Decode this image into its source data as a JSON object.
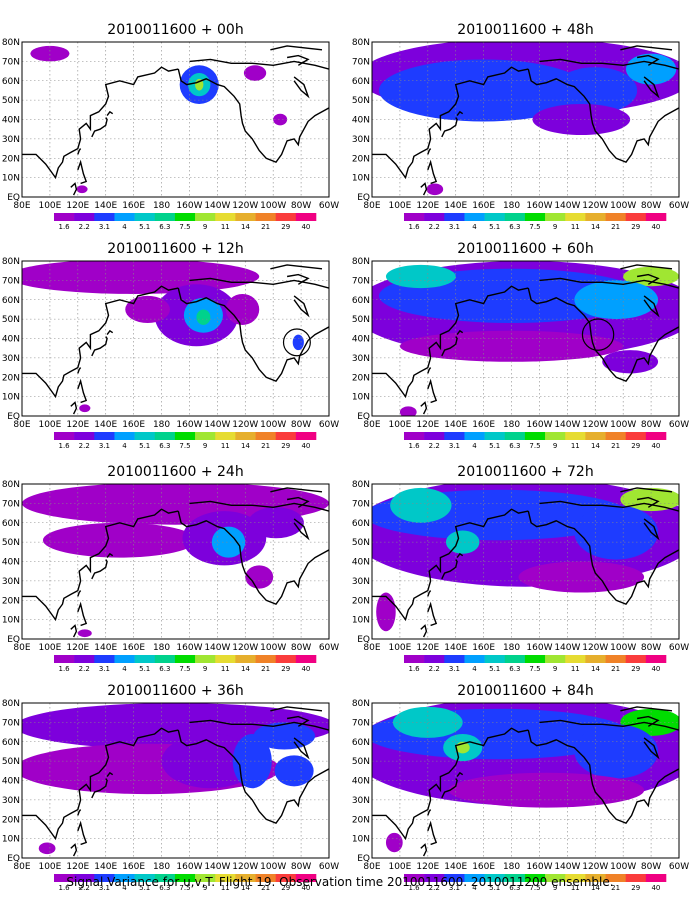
{
  "caption": "Signal Variance for u,v,T. Flight 19. Observation time 2010011600. 2010011200 ensemble.",
  "colorbar": {
    "labels": [
      "1.6",
      "2.2",
      "3.1",
      "4",
      "5.1",
      "6.3",
      "7.5",
      "9",
      "11",
      "14",
      "21",
      "29",
      "40"
    ],
    "colors": [
      "#a000c8",
      "#7d00dc",
      "#1e3cff",
      "#00a0ff",
      "#00c8c8",
      "#00d28c",
      "#00dc00",
      "#a0e632",
      "#e6dc32",
      "#e6af2d",
      "#f08228",
      "#fa3c3c",
      "#f00082"
    ]
  },
  "x_tick_labels": [
    "80E",
    "100E",
    "120E",
    "140E",
    "160E",
    "180",
    "160W",
    "140W",
    "120W",
    "100W",
    "80W",
    "60W"
  ],
  "y_tick_labels": [
    "EQ",
    "10N",
    "20N",
    "30N",
    "40N",
    "50N",
    "60N",
    "70N",
    "80N"
  ],
  "chart_data": [
    {
      "type": "heatmap",
      "title": "2010011600 + 00h",
      "lead_hours": 0,
      "xlim": [
        "80E",
        "60W"
      ],
      "ylim": [
        "EQ",
        "80N"
      ],
      "features": [
        {
          "lon": 207,
          "lat": 58,
          "rx": 14,
          "ry": 10,
          "level": 2
        },
        {
          "lon": 207,
          "lat": 58,
          "rx": 8,
          "ry": 6,
          "level": 4
        },
        {
          "lon": 207,
          "lat": 58,
          "rx": 3,
          "ry": 3,
          "level": 7
        },
        {
          "lon": 100,
          "lat": 74,
          "rx": 14,
          "ry": 4,
          "level": 0
        },
        {
          "lon": 265,
          "lat": 40,
          "rx": 5,
          "ry": 3,
          "level": 0
        },
        {
          "lon": 247,
          "lat": 64,
          "rx": 8,
          "ry": 4,
          "level": 0
        },
        {
          "lon": 123,
          "lat": 4,
          "rx": 4,
          "ry": 2,
          "level": 0
        }
      ],
      "circle": null
    },
    {
      "type": "heatmap",
      "title": "2010011600 + 12h",
      "lead_hours": 12,
      "xlim": [
        "80E",
        "60W"
      ],
      "ylim": [
        "EQ",
        "80N"
      ],
      "features": [
        {
          "lon": 160,
          "lat": 72,
          "rx": 90,
          "ry": 9,
          "level": 0
        },
        {
          "lon": 205,
          "lat": 52,
          "rx": 30,
          "ry": 16,
          "level": 1
        },
        {
          "lon": 210,
          "lat": 52,
          "rx": 14,
          "ry": 9,
          "level": 3
        },
        {
          "lon": 210,
          "lat": 51,
          "rx": 5,
          "ry": 4,
          "level": 5
        },
        {
          "lon": 170,
          "lat": 55,
          "rx": 16,
          "ry": 7,
          "level": 0
        },
        {
          "lon": 238,
          "lat": 55,
          "rx": 12,
          "ry": 8,
          "level": 0
        },
        {
          "lon": 278,
          "lat": 38,
          "rx": 4,
          "ry": 4,
          "level": 2
        },
        {
          "lon": 125,
          "lat": 4,
          "rx": 4,
          "ry": 2,
          "level": 0
        }
      ],
      "circle": {
        "lon": 277,
        "lat": 38,
        "r_deg": 6
      }
    },
    {
      "type": "heatmap",
      "title": "2010011600 + 24h",
      "lead_hours": 24,
      "xlim": [
        "80E",
        "60W"
      ],
      "ylim": [
        "EQ",
        "80N"
      ],
      "features": [
        {
          "lon": 190,
          "lat": 70,
          "rx": 110,
          "ry": 11,
          "level": 0
        },
        {
          "lon": 150,
          "lat": 51,
          "rx": 55,
          "ry": 9,
          "level": 0
        },
        {
          "lon": 225,
          "lat": 52,
          "rx": 30,
          "ry": 14,
          "level": 1
        },
        {
          "lon": 228,
          "lat": 50,
          "rx": 12,
          "ry": 8,
          "level": 3
        },
        {
          "lon": 262,
          "lat": 60,
          "rx": 20,
          "ry": 8,
          "level": 1
        },
        {
          "lon": 250,
          "lat": 32,
          "rx": 10,
          "ry": 6,
          "level": 0
        },
        {
          "lon": 125,
          "lat": 3,
          "rx": 5,
          "ry": 2,
          "level": 0
        }
      ],
      "circle": null
    },
    {
      "type": "heatmap",
      "title": "2010011600 + 36h",
      "lead_hours": 36,
      "xlim": [
        "80E",
        "60W"
      ],
      "ylim": [
        "EQ",
        "80N"
      ],
      "features": [
        {
          "lon": 190,
          "lat": 68,
          "rx": 115,
          "ry": 12,
          "level": 1
        },
        {
          "lon": 170,
          "lat": 46,
          "rx": 95,
          "ry": 13,
          "level": 0
        },
        {
          "lon": 215,
          "lat": 50,
          "rx": 35,
          "ry": 14,
          "level": 1
        },
        {
          "lon": 245,
          "lat": 50,
          "rx": 14,
          "ry": 14,
          "level": 2
        },
        {
          "lon": 275,
          "lat": 45,
          "rx": 14,
          "ry": 8,
          "level": 2
        },
        {
          "lon": 268,
          "lat": 63,
          "rx": 22,
          "ry": 7,
          "level": 2
        },
        {
          "lon": 98,
          "lat": 5,
          "rx": 6,
          "ry": 3,
          "level": 0
        }
      ],
      "circle": null
    },
    {
      "type": "heatmap",
      "title": "2010011600 + 48h",
      "lead_hours": 48,
      "xlim": [
        "80E",
        "60W"
      ],
      "ylim": [
        "EQ",
        "80N"
      ],
      "features": [
        {
          "lon": 190,
          "lat": 62,
          "rx": 120,
          "ry": 20,
          "level": 1
        },
        {
          "lon": 160,
          "lat": 55,
          "rx": 75,
          "ry": 16,
          "level": 2
        },
        {
          "lon": 240,
          "lat": 55,
          "rx": 30,
          "ry": 12,
          "level": 2
        },
        {
          "lon": 280,
          "lat": 66,
          "rx": 18,
          "ry": 8,
          "level": 3
        },
        {
          "lon": 230,
          "lat": 40,
          "rx": 35,
          "ry": 8,
          "level": 1
        },
        {
          "lon": 125,
          "lat": 4,
          "rx": 6,
          "ry": 3,
          "level": 0
        }
      ],
      "circle": null
    },
    {
      "type": "heatmap",
      "title": "2010011600 + 60h",
      "lead_hours": 60,
      "xlim": [
        "80E",
        "60W"
      ],
      "ylim": [
        "EQ",
        "80N"
      ],
      "features": [
        {
          "lon": 190,
          "lat": 55,
          "rx": 125,
          "ry": 25,
          "level": 1
        },
        {
          "lon": 180,
          "lat": 62,
          "rx": 95,
          "ry": 14,
          "level": 2
        },
        {
          "lon": 115,
          "lat": 72,
          "rx": 25,
          "ry": 6,
          "level": 4
        },
        {
          "lon": 280,
          "lat": 72,
          "rx": 20,
          "ry": 5,
          "level": 7
        },
        {
          "lon": 255,
          "lat": 60,
          "rx": 30,
          "ry": 10,
          "level": 3
        },
        {
          "lon": 180,
          "lat": 36,
          "rx": 80,
          "ry": 8,
          "level": 0
        },
        {
          "lon": 265,
          "lat": 28,
          "rx": 20,
          "ry": 6,
          "level": 1
        },
        {
          "lon": 106,
          "lat": 2,
          "rx": 6,
          "ry": 3,
          "level": 0
        }
      ],
      "circle": {
        "lon": 242,
        "lat": 42,
        "r_deg": 7
      }
    },
    {
      "type": "heatmap",
      "title": "2010011600 + 72h",
      "lead_hours": 72,
      "xlim": [
        "80E",
        "60W"
      ],
      "ylim": [
        "EQ",
        "80N"
      ],
      "features": [
        {
          "lon": 190,
          "lat": 55,
          "rx": 125,
          "ry": 28,
          "level": 1
        },
        {
          "lon": 170,
          "lat": 64,
          "rx": 95,
          "ry": 13,
          "level": 2
        },
        {
          "lon": 115,
          "lat": 69,
          "rx": 22,
          "ry": 9,
          "level": 4
        },
        {
          "lon": 145,
          "lat": 50,
          "rx": 12,
          "ry": 6,
          "level": 4
        },
        {
          "lon": 280,
          "lat": 72,
          "rx": 22,
          "ry": 6,
          "level": 7
        },
        {
          "lon": 255,
          "lat": 55,
          "rx": 30,
          "ry": 14,
          "level": 2
        },
        {
          "lon": 230,
          "lat": 32,
          "rx": 45,
          "ry": 8,
          "level": 0
        },
        {
          "lon": 90,
          "lat": 14,
          "rx": 7,
          "ry": 10,
          "level": 0
        }
      ],
      "circle": null
    },
    {
      "type": "heatmap",
      "title": "2010011600 + 84h",
      "lead_hours": 84,
      "xlim": [
        "80E",
        "60W"
      ],
      "ylim": [
        "EQ",
        "80N"
      ],
      "features": [
        {
          "lon": 190,
          "lat": 55,
          "rx": 125,
          "ry": 28,
          "level": 1
        },
        {
          "lon": 170,
          "lat": 64,
          "rx": 95,
          "ry": 13,
          "level": 2
        },
        {
          "lon": 120,
          "lat": 70,
          "rx": 25,
          "ry": 8,
          "level": 4
        },
        {
          "lon": 145,
          "lat": 57,
          "rx": 14,
          "ry": 7,
          "level": 4
        },
        {
          "lon": 145,
          "lat": 57,
          "rx": 5,
          "ry": 3,
          "level": 7
        },
        {
          "lon": 280,
          "lat": 70,
          "rx": 22,
          "ry": 7,
          "level": 6
        },
        {
          "lon": 255,
          "lat": 55,
          "rx": 30,
          "ry": 14,
          "level": 2
        },
        {
          "lon": 205,
          "lat": 35,
          "rx": 70,
          "ry": 9,
          "level": 0
        },
        {
          "lon": 96,
          "lat": 8,
          "rx": 6,
          "ry": 5,
          "level": 0
        }
      ],
      "circle": null
    }
  ]
}
